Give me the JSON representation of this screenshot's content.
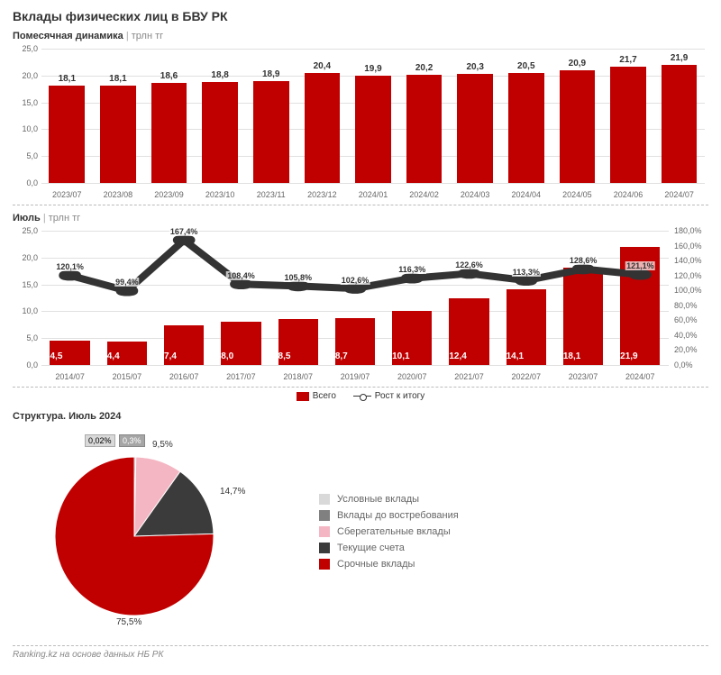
{
  "title": "Вклады физических лиц в БВУ РК",
  "chart1": {
    "subtitle_main": "Помесячная динамика",
    "subtitle_unit": "трлн тг",
    "type": "bar",
    "bar_color": "#c00000",
    "grid_color": "#e0e0e0",
    "background_color": "#ffffff",
    "ylim": [
      0,
      25
    ],
    "ytick_step": 5,
    "yticks": [
      0.0,
      5.0,
      10.0,
      15.0,
      20.0,
      25.0
    ],
    "categories": [
      "2023/07",
      "2023/08",
      "2023/09",
      "2023/10",
      "2023/11",
      "2023/12",
      "2024/01",
      "2024/02",
      "2024/03",
      "2024/04",
      "2024/05",
      "2024/06",
      "2024/07"
    ],
    "values": [
      18.1,
      18.1,
      18.6,
      18.8,
      18.9,
      20.4,
      19.9,
      20.2,
      20.3,
      20.5,
      20.9,
      21.7,
      21.9
    ],
    "value_labels": [
      "18,1",
      "18,1",
      "18,6",
      "18,8",
      "18,9",
      "20,4",
      "19,9",
      "20,2",
      "20,3",
      "20,5",
      "20,9",
      "21,7",
      "21,9"
    ],
    "bar_width_pct": 70,
    "label_fontsize": 10
  },
  "chart2": {
    "subtitle_main": "Июль",
    "subtitle_unit": "трлн тг",
    "type": "bar+line",
    "bar_color": "#c00000",
    "line_color": "#333333",
    "marker_fill": "#ffffff",
    "marker_stroke": "#333333",
    "grid_color": "#e0e0e0",
    "ylim": [
      0,
      25
    ],
    "yticks": [
      0.0,
      5.0,
      10.0,
      15.0,
      20.0,
      25.0
    ],
    "y2lim": [
      0,
      180
    ],
    "y2ticks": [
      "0,0%",
      "20,0%",
      "40,0%",
      "60,0%",
      "80,0%",
      "100,0%",
      "120,0%",
      "140,0%",
      "160,0%",
      "180,0%"
    ],
    "y2tick_values": [
      0,
      20,
      40,
      60,
      80,
      100,
      120,
      140,
      160,
      180
    ],
    "categories": [
      "2014/07",
      "2015/07",
      "2016/07",
      "2017/07",
      "2018/07",
      "2019/07",
      "2020/07",
      "2021/07",
      "2022/07",
      "2023/07",
      "2024/07"
    ],
    "bar_values": [
      4.5,
      4.4,
      7.4,
      8.0,
      8.5,
      8.7,
      10.1,
      12.4,
      14.1,
      18.1,
      21.9
    ],
    "bar_labels": [
      "4,5",
      "4,4",
      "7,4",
      "8,0",
      "8,5",
      "8,7",
      "10,1",
      "12,4",
      "14,1",
      "18,1",
      "21,9"
    ],
    "line_values": [
      120.1,
      99.4,
      167.4,
      108.4,
      105.8,
      102.6,
      116.3,
      122.6,
      113.3,
      128.6,
      121.1
    ],
    "line_labels": [
      "120,1%",
      "99,4%",
      "167,4%",
      "108,4%",
      "105,8%",
      "102,6%",
      "116,3%",
      "122,6%",
      "113,3%",
      "128,6%",
      "121,1%"
    ],
    "legend_bar": "Всего",
    "legend_line": "Рост к итогу"
  },
  "pie": {
    "subtitle": "Структура. Июль 2024",
    "type": "pie",
    "slices": [
      {
        "label": "Условные вклады",
        "value_label": "0,02%",
        "value": 0.02,
        "color": "#d9d9d9"
      },
      {
        "label": "Вклады до востребования",
        "value_label": "0,3%",
        "value": 0.3,
        "color": "#808080"
      },
      {
        "label": "Сберегательные вклады",
        "value_label": "9,5%",
        "value": 9.5,
        "color": "#f4b6c2"
      },
      {
        "label": "Текущие счета",
        "value_label": "14,7%",
        "value": 14.7,
        "color": "#3b3b3b"
      },
      {
        "label": "Срочные вклады",
        "value_label": "75,5%",
        "value": 75.5,
        "color": "#c00000"
      }
    ]
  },
  "footer": "Ranking.kz на основе данных НБ РК"
}
